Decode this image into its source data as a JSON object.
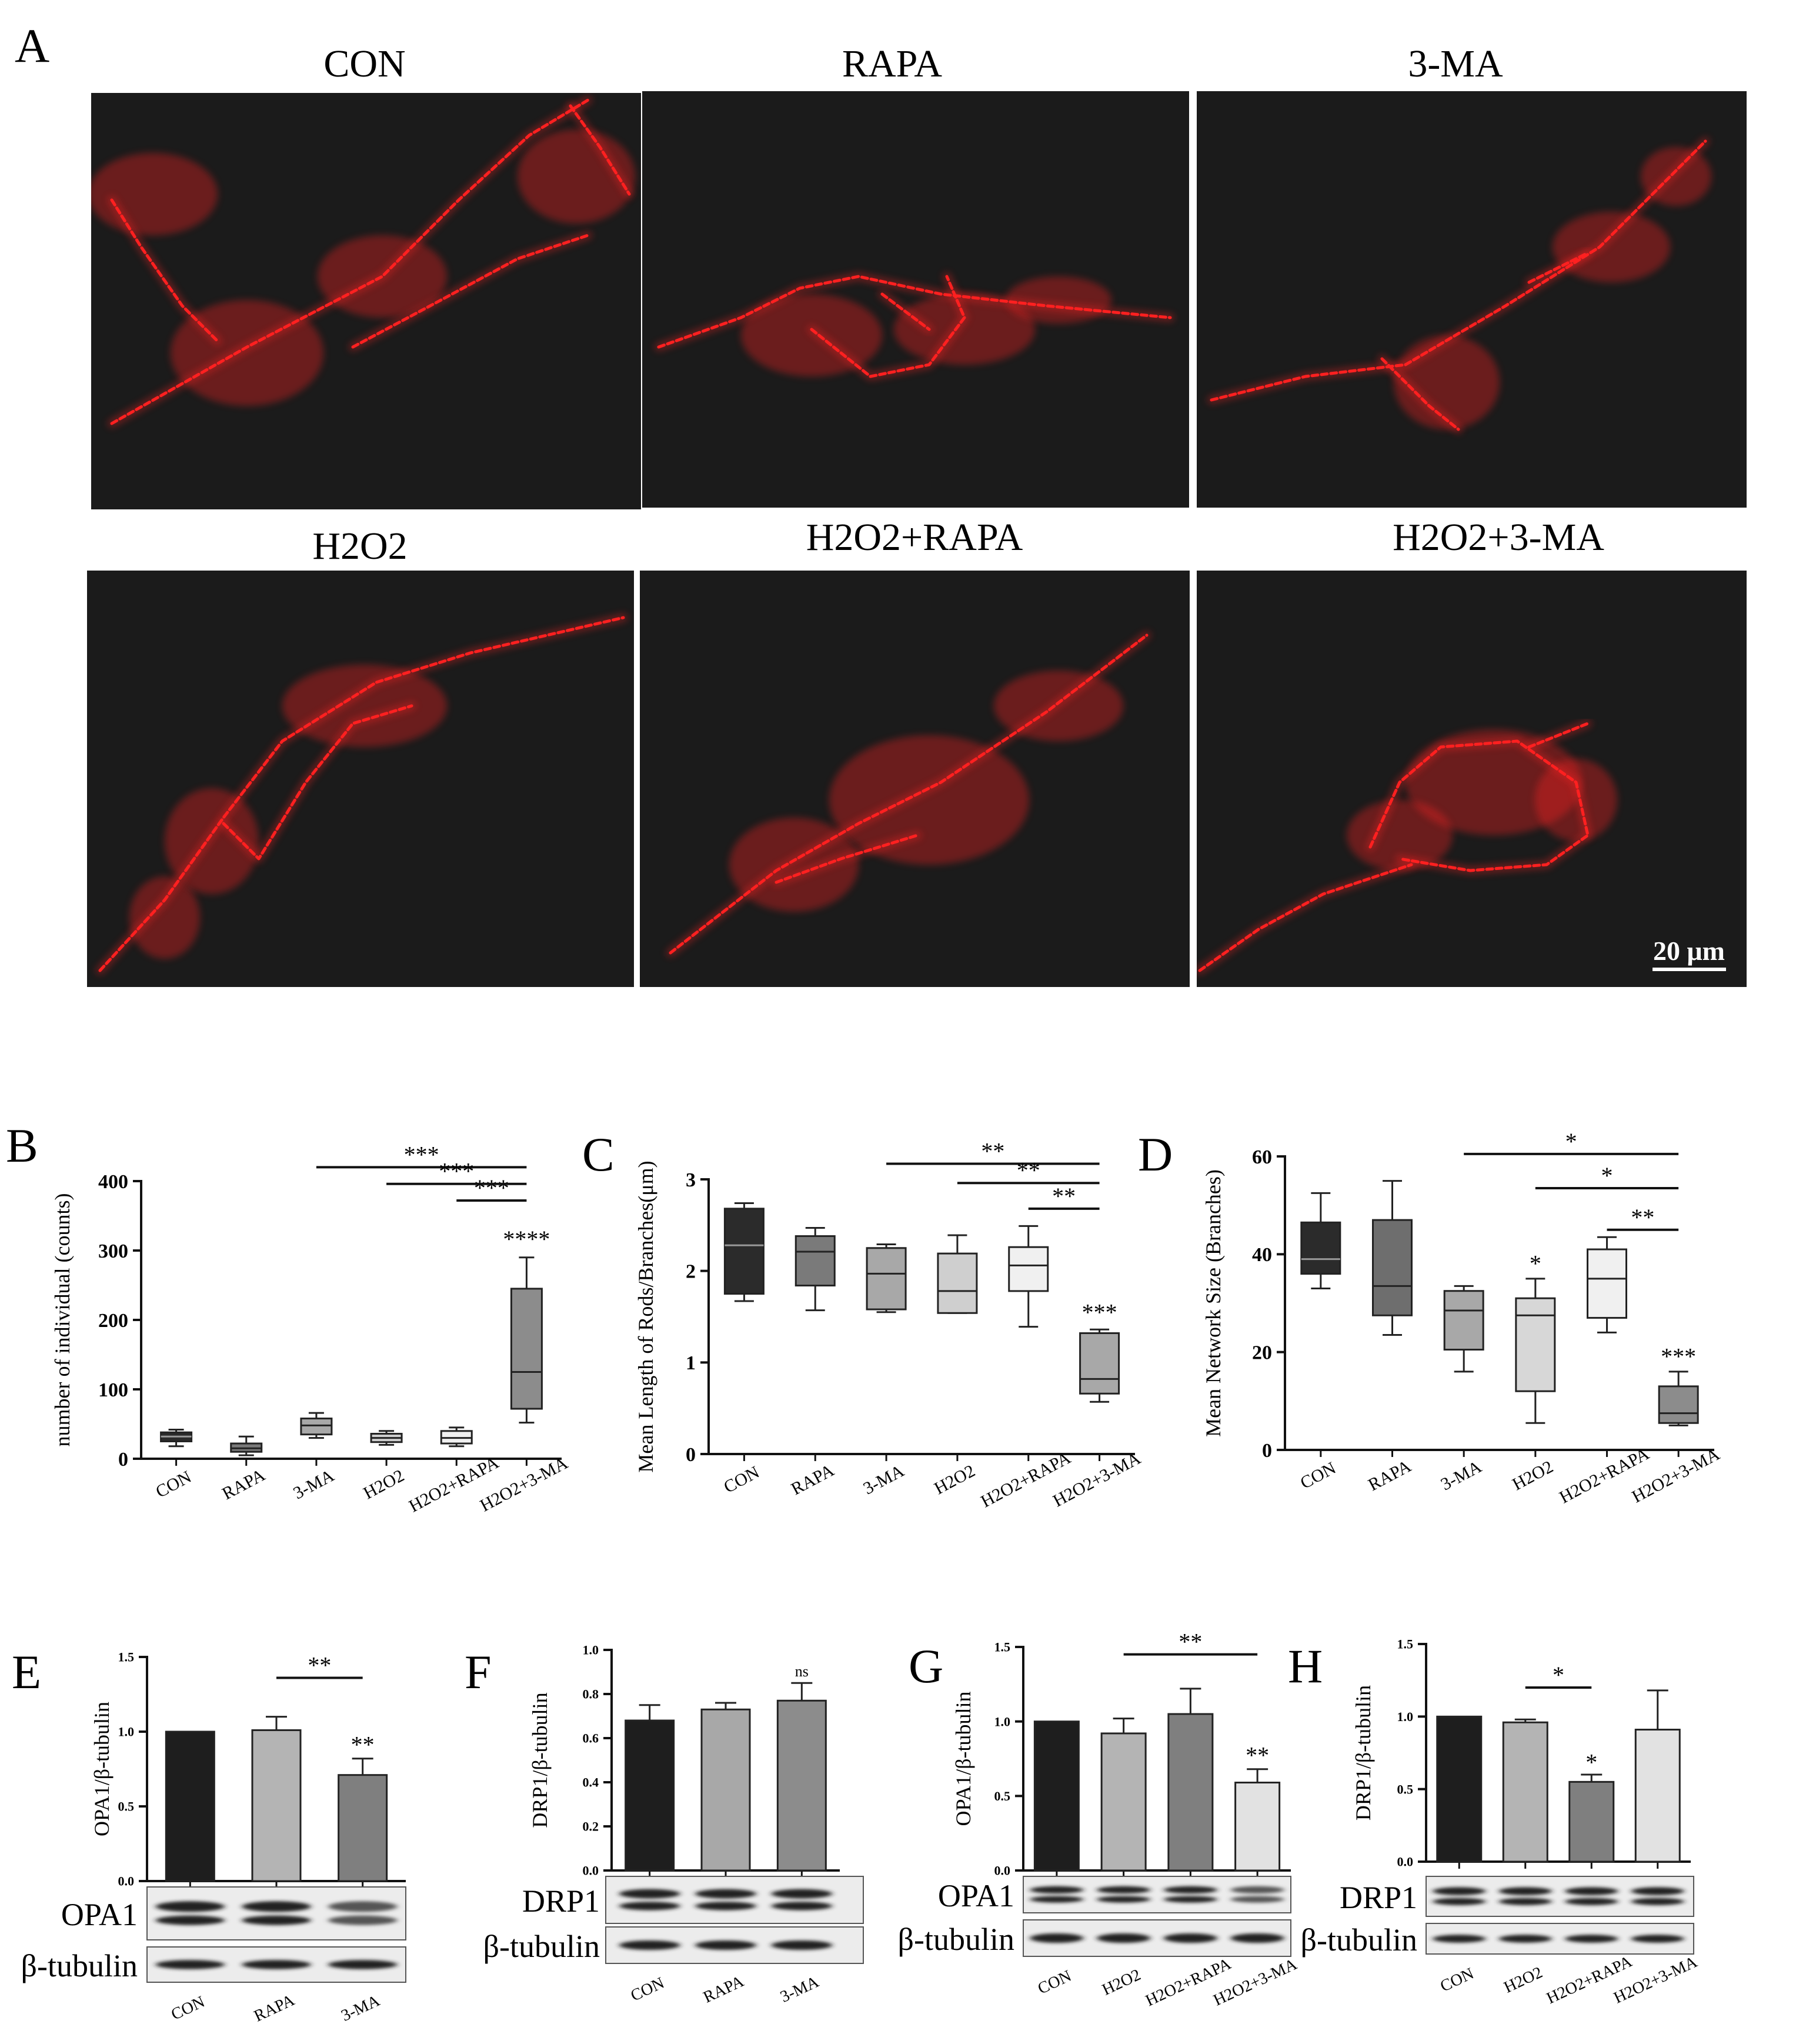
{
  "panelA": {
    "letter": "A",
    "titles": [
      "CON",
      "RAPA",
      "3-MA",
      "H2O2",
      "H2O2+RAPA",
      "H2O2+3-MA"
    ],
    "scale_bar": "20 μm",
    "stain_color": "#ff2020"
  },
  "chart_data": [
    {
      "id": "B",
      "letter": "B",
      "type": "box",
      "ylabel": "number of individual (counts)",
      "ylim": [
        0,
        400
      ],
      "yticks": [
        0,
        100,
        200,
        300,
        400
      ],
      "categories": [
        "CON",
        "RAPA",
        "3-MA",
        "H2O2",
        "H2O2+RAPA",
        "H2O2+3-MA"
      ],
      "boxes": [
        {
          "min": 18,
          "q1": 25,
          "median": 32,
          "q3": 38,
          "max": 42,
          "fill": "#2b2b2b"
        },
        {
          "min": 5,
          "q1": 10,
          "median": 15,
          "q3": 22,
          "max": 32,
          "fill": "#7a7a7a"
        },
        {
          "min": 30,
          "q1": 35,
          "median": 48,
          "q3": 58,
          "max": 66,
          "fill": "#a8a8a8"
        },
        {
          "min": 20,
          "q1": 24,
          "median": 30,
          "q3": 36,
          "max": 40,
          "fill": "#cfcfcf"
        },
        {
          "min": 18,
          "q1": 22,
          "median": 30,
          "q3": 40,
          "max": 45,
          "fill": "#f0f0f0"
        },
        {
          "min": 52,
          "q1": 72,
          "median": 125,
          "q3": 245,
          "max": 290,
          "fill": "#8c8c8c"
        }
      ],
      "annotations": [
        {
          "type": "bracket",
          "from": 2,
          "to": 5,
          "y": 420,
          "label": "***"
        },
        {
          "type": "bracket",
          "from": 4,
          "to": 5,
          "y": 372,
          "label": "***"
        },
        {
          "type": "bracket",
          "from": 3,
          "to": 5,
          "y": 396,
          "label": "***"
        },
        {
          "type": "star",
          "at": 5,
          "y": 305,
          "label": "****"
        }
      ]
    },
    {
      "id": "C",
      "letter": "C",
      "type": "box",
      "ylabel": "Mean Length of Rods/Branches(μm)",
      "ylim": [
        0,
        3
      ],
      "yticks": [
        0,
        1,
        2,
        3
      ],
      "categories": [
        "CON",
        "RAPA",
        "3-MA",
        "H2O2",
        "H2O2+RAPA",
        "H2O2+3-MA"
      ],
      "boxes": [
        {
          "min": 1.67,
          "q1": 1.75,
          "median": 2.28,
          "q3": 2.68,
          "max": 2.74,
          "fill": "#2b2b2b"
        },
        {
          "min": 1.57,
          "q1": 1.84,
          "median": 2.21,
          "q3": 2.38,
          "max": 2.47,
          "fill": "#7a7a7a"
        },
        {
          "min": 1.55,
          "q1": 1.58,
          "median": 1.97,
          "q3": 2.25,
          "max": 2.29,
          "fill": "#a8a8a8"
        },
        {
          "min": 1.54,
          "q1": 1.54,
          "median": 1.78,
          "q3": 2.19,
          "max": 2.39,
          "fill": "#cfcfcf"
        },
        {
          "min": 1.39,
          "q1": 1.78,
          "median": 2.06,
          "q3": 2.26,
          "max": 2.49,
          "fill": "#f0f0f0"
        },
        {
          "min": 0.57,
          "q1": 0.66,
          "median": 0.82,
          "q3": 1.32,
          "max": 1.36,
          "fill": "#a8a8a8"
        }
      ],
      "annotations": [
        {
          "type": "bracket",
          "from": 2,
          "to": 5,
          "y": 3.17,
          "label": "**"
        },
        {
          "type": "bracket",
          "from": 3,
          "to": 5,
          "y": 2.96,
          "label": "**"
        },
        {
          "type": "bracket",
          "from": 4,
          "to": 5,
          "y": 2.68,
          "label": "**"
        },
        {
          "type": "star",
          "at": 5,
          "y": 1.46,
          "label": "***"
        }
      ]
    },
    {
      "id": "D",
      "letter": "D",
      "type": "box",
      "ylabel": "Mean Network Size (Branches)",
      "ylim": [
        0,
        60
      ],
      "yticks": [
        0,
        20,
        40,
        60
      ],
      "categories": [
        "CON",
        "RAPA",
        "3-MA",
        "H2O2",
        "H2O2+RAPA",
        "H2O2+3-MA"
      ],
      "boxes": [
        {
          "min": 33,
          "q1": 36,
          "median": 39,
          "q3": 46.5,
          "max": 52.5,
          "fill": "#2b2b2b"
        },
        {
          "min": 23.5,
          "q1": 27.5,
          "median": 33.5,
          "q3": 47,
          "max": 55,
          "fill": "#6e6e6e"
        },
        {
          "min": 16,
          "q1": 20.5,
          "median": 28.5,
          "q3": 32.5,
          "max": 33.5,
          "fill": "#a8a8a8"
        },
        {
          "min": 5.5,
          "q1": 12,
          "median": 27.5,
          "q3": 31,
          "max": 35,
          "fill": "#d7d7d7"
        },
        {
          "min": 24,
          "q1": 27,
          "median": 35,
          "q3": 41,
          "max": 43.5,
          "fill": "#f0f0f0"
        },
        {
          "min": 5,
          "q1": 5.5,
          "median": 7.5,
          "q3": 13,
          "max": 16,
          "fill": "#8c8c8c"
        }
      ],
      "annotations": [
        {
          "type": "bracket",
          "from": 2,
          "to": 5,
          "y": 60.5,
          "label": "*"
        },
        {
          "type": "bracket",
          "from": 3,
          "to": 5,
          "y": 53.5,
          "label": "*"
        },
        {
          "type": "bracket",
          "from": 4,
          "to": 5,
          "y": 45,
          "label": "**"
        },
        {
          "type": "star",
          "at": 3,
          "y": 36.5,
          "label": "*"
        },
        {
          "type": "star",
          "at": 5,
          "y": 17.5,
          "label": "***"
        }
      ]
    },
    {
      "id": "E",
      "letter": "E",
      "type": "bar",
      "ylabel": "OPA1/β-tubulin",
      "ylim": [
        0,
        1.5
      ],
      "yticks": [
        0.0,
        0.5,
        1.0,
        1.5
      ],
      "tick_labels": [
        "0.0",
        "0.5",
        "1.0",
        "1.5"
      ],
      "categories": [
        "CON",
        "RAPA",
        "3-MA"
      ],
      "values": [
        1.0,
        1.01,
        0.71
      ],
      "errors": [
        0.0,
        0.09,
        0.11
      ],
      "fills": [
        "#1e1e1e",
        "#b4b4b4",
        "#7f7f7f"
      ],
      "annotations": [
        {
          "type": "bracket",
          "from": 1,
          "to": 2,
          "y": 1.36,
          "label": "**"
        },
        {
          "type": "star",
          "at": 2,
          "y": 0.86,
          "label": "**"
        }
      ],
      "blot_labels": [
        "OPA1",
        "β-tubulin"
      ]
    },
    {
      "id": "F",
      "letter": "F",
      "type": "bar",
      "ylabel": "DRP1/β-tubulin",
      "ylim": [
        0,
        1.0
      ],
      "yticks": [
        0.0,
        0.2,
        0.4,
        0.6,
        0.8,
        1.0
      ],
      "tick_labels": [
        "0.0",
        "0.2",
        "0.4",
        "0.6",
        "0.8",
        "1.0"
      ],
      "categories": [
        "CON",
        "RAPA",
        "3-MA"
      ],
      "values": [
        0.68,
        0.73,
        0.77
      ],
      "errors": [
        0.07,
        0.03,
        0.08
      ],
      "fills": [
        "#1e1e1e",
        "#a8a8a8",
        "#8c8c8c"
      ],
      "annotations": [
        {
          "type": "star",
          "at": 2,
          "y": 0.88,
          "label": "ns"
        }
      ],
      "blot_labels": [
        "DRP1",
        "β-tubulin"
      ]
    },
    {
      "id": "G",
      "letter": "G",
      "type": "bar",
      "ylabel": "OPA1/β-tubulin",
      "ylim": [
        0,
        1.5
      ],
      "yticks": [
        0.0,
        0.5,
        1.0,
        1.5
      ],
      "tick_labels": [
        "0.0",
        "0.5",
        "1.0",
        "1.5"
      ],
      "categories": [
        "CON",
        "H2O2",
        "H2O2+RAPA",
        "H2O2+3-MA"
      ],
      "values": [
        1.0,
        0.92,
        1.05,
        0.59
      ],
      "errors": [
        0.0,
        0.1,
        0.17,
        0.09
      ],
      "fills": [
        "#1e1e1e",
        "#b4b4b4",
        "#7f7f7f",
        "#e2e2e2"
      ],
      "annotations": [
        {
          "type": "bracket",
          "from": 1,
          "to": 3,
          "y": 1.45,
          "label": "**"
        },
        {
          "type": "star",
          "at": 3,
          "y": 0.72,
          "label": "**"
        }
      ],
      "blot_labels": [
        "OPA1",
        "β-tubulin"
      ]
    },
    {
      "id": "H",
      "letter": "H",
      "type": "bar",
      "ylabel": "DRP1/β-tubulin",
      "ylim": [
        0,
        1.5
      ],
      "yticks": [
        0.0,
        0.5,
        1.0,
        1.5
      ],
      "tick_labels": [
        "0.0",
        "0.5",
        "1.0",
        "1.5"
      ],
      "categories": [
        "CON",
        "H2O2",
        "H2O2+RAPA",
        "H2O2+3-MA"
      ],
      "values": [
        1.0,
        0.96,
        0.55,
        0.91
      ],
      "errors": [
        0.0,
        0.02,
        0.05,
        0.27
      ],
      "fills": [
        "#1e1e1e",
        "#b4b4b4",
        "#7f7f7f",
        "#e2e2e2"
      ],
      "annotations": [
        {
          "type": "bracket",
          "from": 1,
          "to": 2,
          "y": 1.2,
          "label": "*"
        },
        {
          "type": "star",
          "at": 2,
          "y": 0.63,
          "label": "*"
        }
      ],
      "blot_labels": [
        "DRP1",
        "β-tubulin"
      ]
    }
  ]
}
